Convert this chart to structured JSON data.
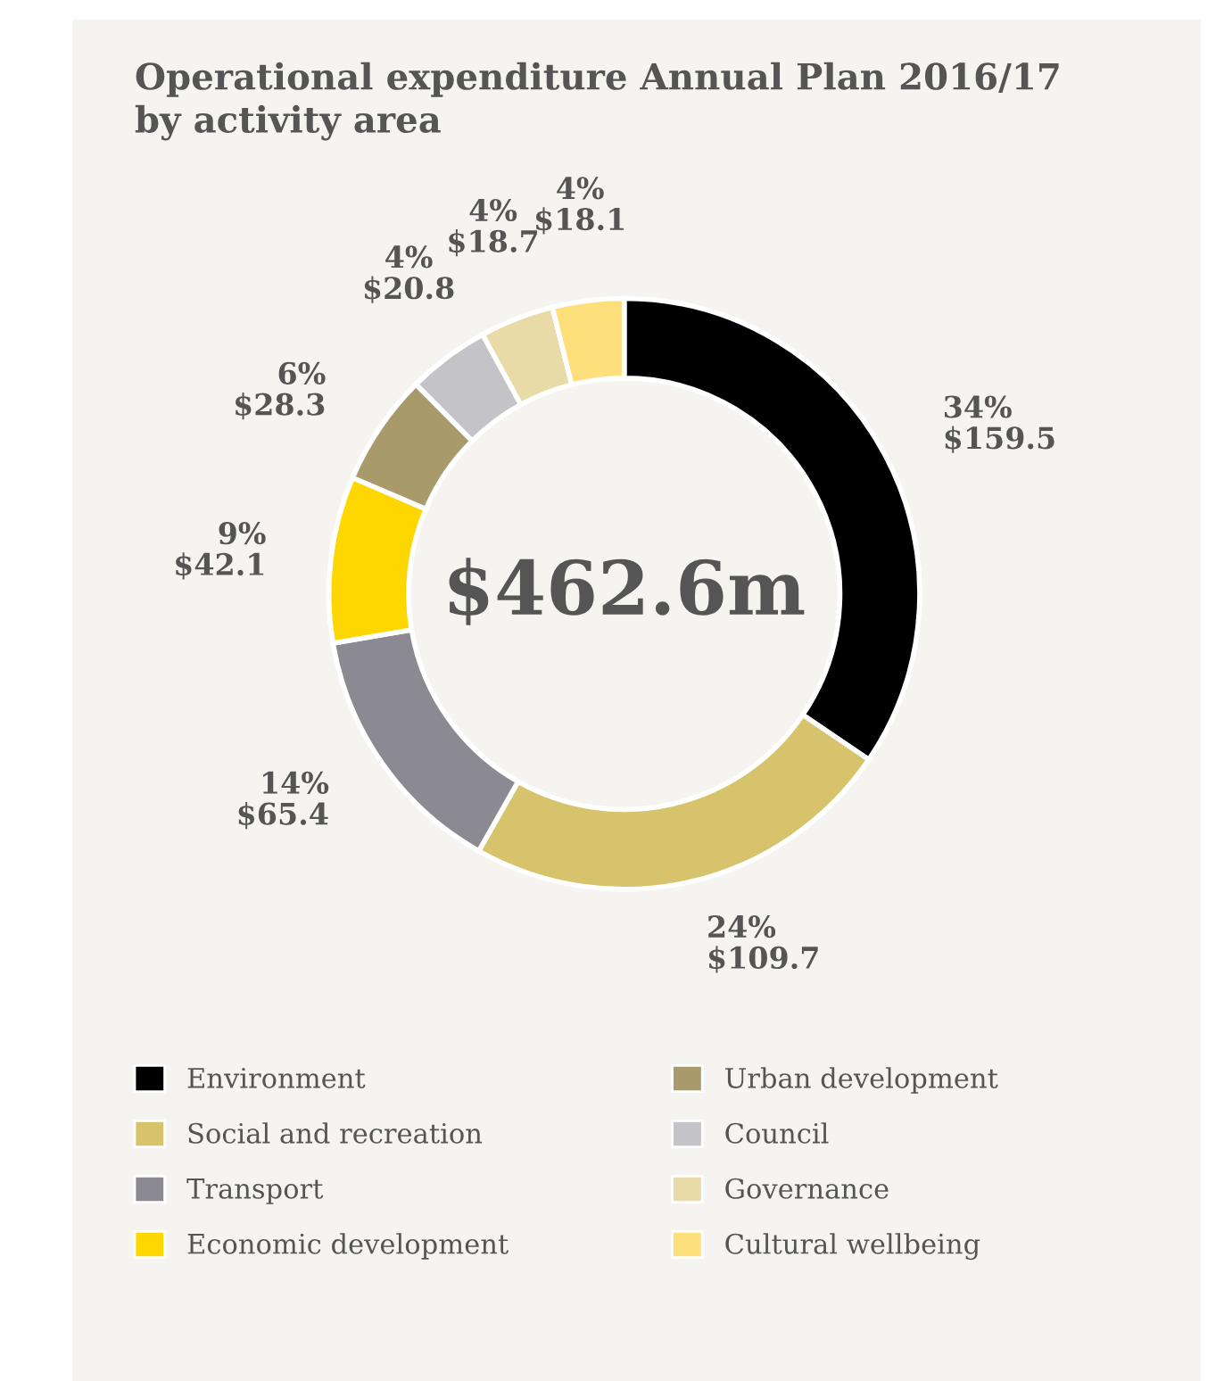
{
  "chart_data": {
    "type": "donut",
    "title": "Operational expenditure Annual Plan 2016/17\nby activity area",
    "categories": [
      "Environment",
      "Social and recreation",
      "Transport",
      "Economic development",
      "Urban development",
      "Council",
      "Governance",
      "Cultural wellbeing"
    ],
    "values": [
      159.5,
      109.7,
      65.4,
      42.1,
      28.3,
      20.8,
      18.7,
      18.1
    ],
    "colors": [
      "#000000",
      "#d6c36c",
      "#8b8a92",
      "#ffd700",
      "#a99a6c",
      "#c4c3c8",
      "#e8dba8",
      "#fde07c"
    ],
    "value_labels": [
      "34%\n$159.5",
      "24%\n$109.7",
      "14%\n$65.4",
      "9%\n$42.1",
      "6%\n$28.3",
      "4%\n$20.8",
      "4%\n$18.7",
      "4%\n$18.1"
    ],
    "annotations": [
      "$462.6m"
    ],
    "legend": "bottom"
  }
}
